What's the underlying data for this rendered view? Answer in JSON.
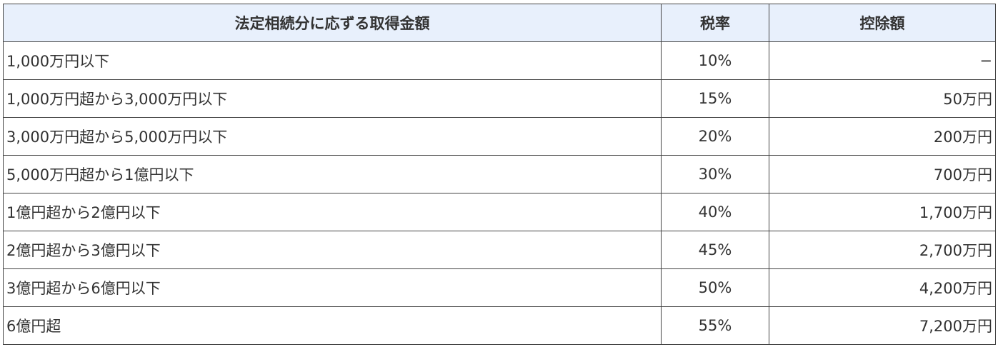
{
  "table": {
    "headers": [
      "法定相続分に応ずる取得金額",
      "税率",
      "控除額"
    ],
    "rows": [
      [
        "1,000万円以下",
        "10%",
        "−"
      ],
      [
        "1,000万円超から3,000万円以下",
        "15%",
        "50万円"
      ],
      [
        "3,000万円超から5,000万円以下",
        "20%",
        "200万円"
      ],
      [
        "5,000万円超から1億円以下",
        "30%",
        "700万円"
      ],
      [
        "1億円超から2億円以下",
        "40%",
        "1,700万円"
      ],
      [
        "2億円超から3億円以下",
        "45%",
        "2,700万円"
      ],
      [
        "3億円超から6億円以下",
        "50%",
        "4,200万円"
      ],
      [
        "6億円超",
        "55%",
        "7,200万円"
      ]
    ],
    "header_bg": "#e8f0fc"
  }
}
